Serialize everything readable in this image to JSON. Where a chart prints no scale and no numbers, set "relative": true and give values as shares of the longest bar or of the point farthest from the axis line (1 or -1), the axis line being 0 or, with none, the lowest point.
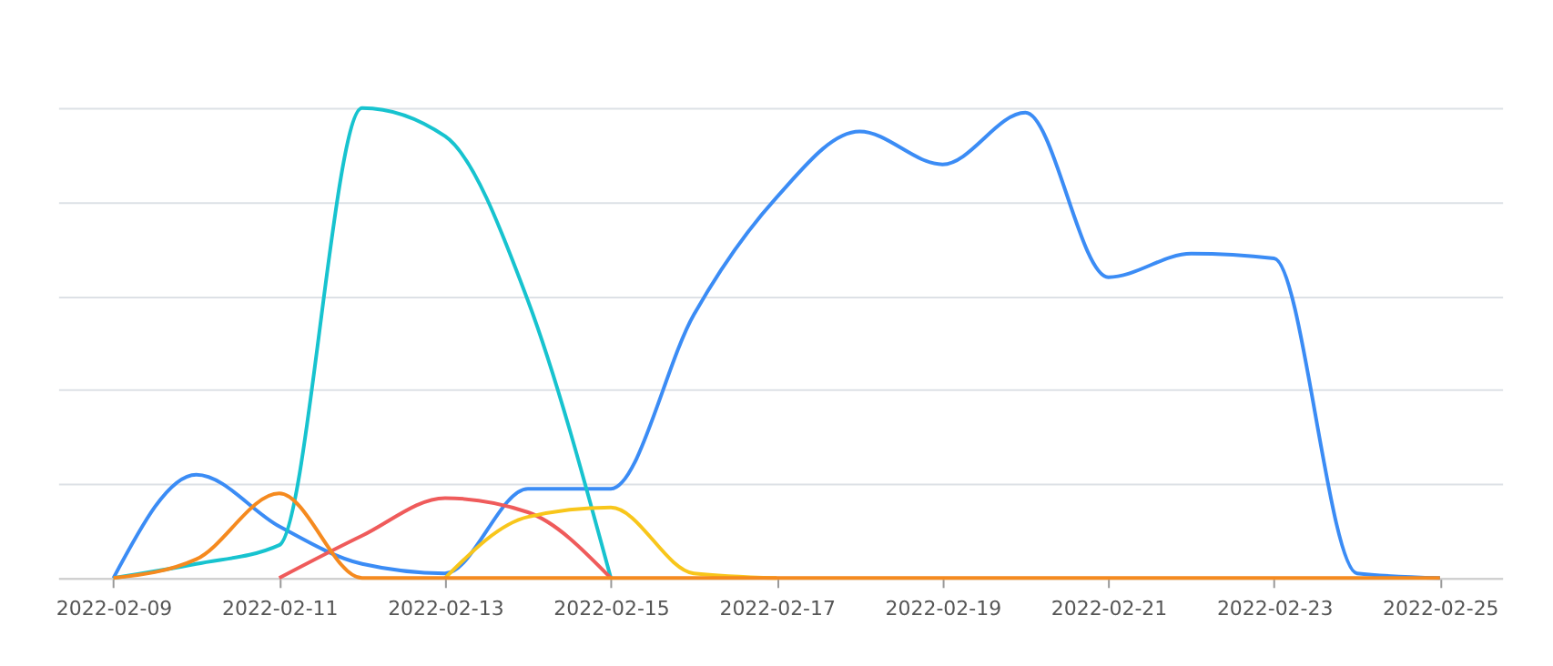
{
  "chart_data": {
    "type": "line",
    "relative": true,
    "grid": "y",
    "marker": "none",
    "line_style": "solid",
    "xlim": [
      "2022-02-08T08:00",
      "2022-02-25T18:00"
    ],
    "xticks": [
      "2022-02-09",
      "2022-02-11",
      "2022-02-13",
      "2022-02-15",
      "2022-02-17",
      "2022-02-19",
      "2022-02-21",
      "2022-02-23",
      "2022-02-25"
    ],
    "series": [
      {
        "color": "#3b8cf5",
        "x": [
          "2022-02-09",
          "2022-02-10",
          "2022-02-11",
          "2022-02-12",
          "2022-02-13",
          "2022-02-14",
          "2022-02-15",
          "2022-02-16",
          "2022-02-17",
          "2022-02-18",
          "2022-02-19",
          "2022-02-20",
          "2022-02-21",
          "2022-02-22",
          "2022-02-23",
          "2022-02-24",
          "2022-02-25"
        ],
        "values": [
          0,
          0.22,
          0.11,
          0.03,
          0.01,
          0.19,
          0.19,
          0.56,
          0.81,
          0.95,
          0.88,
          0.99,
          0.64,
          0.69,
          0.68,
          0.01,
          0
        ]
      },
      {
        "color": "#17c3cf",
        "x": [
          "2022-02-09",
          "2022-02-10",
          "2022-02-11",
          "2022-02-12",
          "2022-02-13",
          "2022-02-14",
          "2022-02-15"
        ],
        "values": [
          0,
          0.03,
          0.07,
          1,
          0.94,
          0.59,
          0
        ]
      },
      {
        "color": "#ef5b5b",
        "x": [
          "2022-02-11",
          "2022-02-12",
          "2022-02-13",
          "2022-02-14",
          "2022-02-15"
        ],
        "values": [
          0,
          0.09,
          0.17,
          0.14,
          0
        ]
      },
      {
        "color": "#f8c61b",
        "x": [
          "2022-02-13",
          "2022-02-14",
          "2022-02-15",
          "2022-02-16",
          "2022-02-17"
        ],
        "values": [
          0,
          0.13,
          0.15,
          0.01,
          0
        ]
      },
      {
        "color": "#f58a1f",
        "x": [
          "2022-02-09",
          "2022-02-10",
          "2022-02-11",
          "2022-02-12",
          "2022-02-13",
          "2022-02-14",
          "2022-02-15",
          "2022-02-16",
          "2022-02-17",
          "2022-02-18",
          "2022-02-19",
          "2022-02-20",
          "2022-02-21",
          "2022-02-22",
          "2022-02-23",
          "2022-02-24",
          "2022-02-25"
        ],
        "values": [
          0,
          0.04,
          0.18,
          0,
          0,
          0,
          0,
          0,
          0,
          0,
          0,
          0,
          0,
          0,
          0,
          0,
          0
        ]
      }
    ]
  }
}
